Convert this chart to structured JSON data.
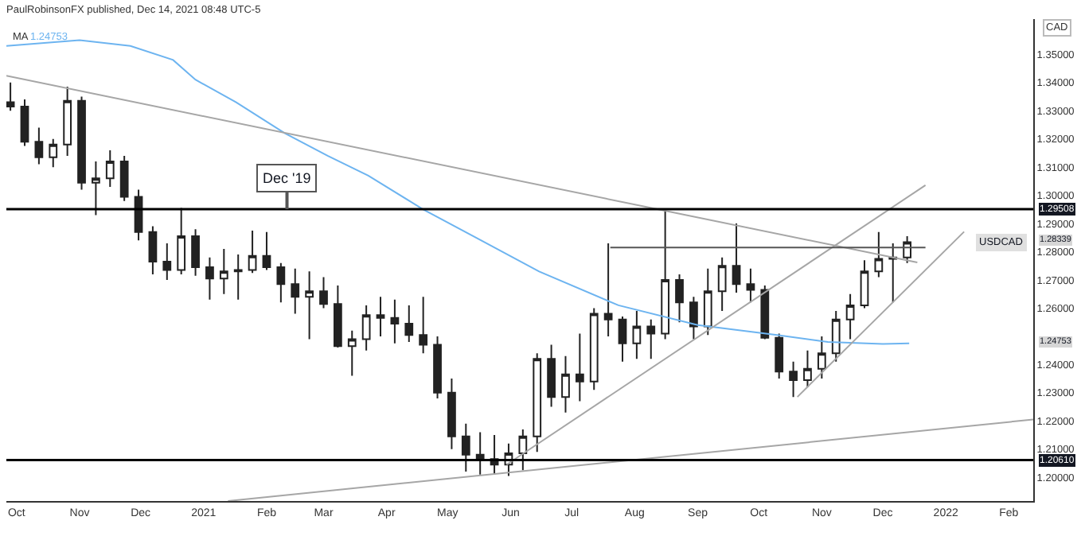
{
  "chart_data": {
    "type": "candlestick",
    "annotations": [
      "PaulRobinsonFX published, Dec 14, 2021 08:48 UTC-5",
      "1.24753",
      "CAD",
      {
        "text": "Dec '19",
        "x": "2021-02-11",
        "y": 1.29508
      },
      {
        "text": "USDCAD",
        "x": "2022-01-28",
        "y": 1.28339
      },
      {
        "text": "1.28339",
        "y": 1.28339
      },
      {
        "text": "1.24753",
        "y": 1.24753
      }
    ],
    "x": [
      "2020-09-28",
      "2020-10-05",
      "2020-10-12",
      "2020-10-19",
      "2020-10-26",
      "2020-11-02",
      "2020-11-09",
      "2020-11-16",
      "2020-11-23",
      "2020-11-30",
      "2020-12-07",
      "2020-12-14",
      "2020-12-21",
      "2020-12-28",
      "2021-01-04",
      "2021-01-11",
      "2021-01-18",
      "2021-01-25",
      "2021-02-01",
      "2021-02-08",
      "2021-02-15",
      "2021-02-22",
      "2021-03-01",
      "2021-03-08",
      "2021-03-15",
      "2021-03-22",
      "2021-03-29",
      "2021-04-05",
      "2021-04-12",
      "2021-04-19",
      "2021-04-26",
      "2021-05-03",
      "2021-05-10",
      "2021-05-17",
      "2021-05-24",
      "2021-05-31",
      "2021-06-07",
      "2021-06-14",
      "2021-06-21",
      "2021-06-28",
      "2021-07-05",
      "2021-07-12",
      "2021-07-19",
      "2021-07-26",
      "2021-08-02",
      "2021-08-09",
      "2021-08-16",
      "2021-08-23",
      "2021-08-30",
      "2021-09-06",
      "2021-09-13",
      "2021-09-20",
      "2021-09-27",
      "2021-10-04",
      "2021-10-11",
      "2021-10-18",
      "2021-10-25",
      "2021-11-01",
      "2021-11-08",
      "2021-11-15",
      "2021-11-22",
      "2021-11-29",
      "2021-12-06",
      "2021-12-13"
    ],
    "ohlc": [
      [
        1.333,
        1.34,
        1.33,
        1.3315
      ],
      [
        1.3315,
        1.334,
        1.3175,
        1.319
      ],
      [
        1.319,
        1.324,
        1.311,
        1.3135
      ],
      [
        1.3135,
        1.32,
        1.31,
        1.318
      ],
      [
        1.318,
        1.3385,
        1.314,
        1.3335
      ],
      [
        1.3335,
        1.335,
        1.302,
        1.3045
      ],
      [
        1.3045,
        1.312,
        1.293,
        1.306
      ],
      [
        1.306,
        1.316,
        1.303,
        1.312
      ],
      [
        1.312,
        1.314,
        1.298,
        1.2995
      ],
      [
        1.2995,
        1.302,
        1.284,
        1.287
      ],
      [
        1.287,
        1.289,
        1.272,
        1.2765
      ],
      [
        1.2765,
        1.283,
        1.27,
        1.2735
      ],
      [
        1.2735,
        1.2955,
        1.272,
        1.2855
      ],
      [
        1.2855,
        1.288,
        1.2715,
        1.2745
      ],
      [
        1.2745,
        1.278,
        1.263,
        1.2705
      ],
      [
        1.2705,
        1.281,
        1.265,
        1.273
      ],
      [
        1.273,
        1.279,
        1.263,
        1.2735
      ],
      [
        1.2735,
        1.2875,
        1.2725,
        1.2785
      ],
      [
        1.2785,
        1.287,
        1.2735,
        1.2745
      ],
      [
        1.2745,
        1.276,
        1.262,
        1.2685
      ],
      [
        1.2685,
        1.274,
        1.258,
        1.264
      ],
      [
        1.264,
        1.273,
        1.249,
        1.266
      ],
      [
        1.266,
        1.271,
        1.26,
        1.2615
      ],
      [
        1.2615,
        1.268,
        1.246,
        1.2465
      ],
      [
        1.2465,
        1.252,
        1.236,
        1.249
      ],
      [
        1.249,
        1.261,
        1.245,
        1.2575
      ],
      [
        1.2575,
        1.264,
        1.25,
        1.2565
      ],
      [
        1.2565,
        1.263,
        1.2475,
        1.2545
      ],
      [
        1.2545,
        1.261,
        1.248,
        1.2505
      ],
      [
        1.2505,
        1.264,
        1.244,
        1.247
      ],
      [
        1.247,
        1.25,
        1.228,
        1.23
      ],
      [
        1.23,
        1.235,
        1.21,
        1.2145
      ],
      [
        1.2145,
        1.219,
        1.202,
        1.208
      ],
      [
        1.208,
        1.216,
        1.201,
        1.2065
      ],
      [
        1.2065,
        1.215,
        1.201,
        1.2045
      ],
      [
        1.2045,
        1.212,
        1.2005,
        1.2085
      ],
      [
        1.2085,
        1.217,
        1.2025,
        1.2145
      ],
      [
        1.2145,
        1.244,
        1.209,
        1.242
      ],
      [
        1.242,
        1.247,
        1.225,
        1.2285
      ],
      [
        1.2285,
        1.243,
        1.223,
        1.2365
      ],
      [
        1.2365,
        1.251,
        1.227,
        1.234
      ],
      [
        1.234,
        1.26,
        1.231,
        1.258
      ],
      [
        1.258,
        1.283,
        1.25,
        1.256
      ],
      [
        1.256,
        1.257,
        1.241,
        1.2475
      ],
      [
        1.2475,
        1.259,
        1.242,
        1.2535
      ],
      [
        1.2535,
        1.256,
        1.242,
        1.251
      ],
      [
        1.251,
        1.295,
        1.249,
        1.27
      ],
      [
        1.27,
        1.272,
        1.255,
        1.262
      ],
      [
        1.262,
        1.264,
        1.249,
        1.2535
      ],
      [
        1.2535,
        1.274,
        1.2505,
        1.266
      ],
      [
        1.266,
        1.278,
        1.259,
        1.275
      ],
      [
        1.275,
        1.29,
        1.2655,
        1.2685
      ],
      [
        1.2685,
        1.274,
        1.262,
        1.2665
      ],
      [
        1.2665,
        1.268,
        1.249,
        1.2495
      ],
      [
        1.2495,
        1.251,
        1.235,
        1.2375
      ],
      [
        1.2375,
        1.241,
        1.2285,
        1.2345
      ],
      [
        1.2345,
        1.245,
        1.232,
        1.2385
      ],
      [
        1.2385,
        1.25,
        1.235,
        1.244
      ],
      [
        1.244,
        1.259,
        1.241,
        1.256
      ],
      [
        1.256,
        1.265,
        1.249,
        1.261
      ],
      [
        1.261,
        1.277,
        1.26,
        1.273
      ],
      [
        1.273,
        1.287,
        1.271,
        1.2775
      ],
      [
        1.2775,
        1.283,
        1.262,
        1.278
      ],
      [
        1.278,
        1.2855,
        1.276,
        1.28339
      ]
    ],
    "series": [
      {
        "name": "MA",
        "type": "line",
        "color": "#6db4f0",
        "x": [
          "2020-09-26",
          "2020-11-01",
          "2020-11-26",
          "2020-12-17",
          "2020-12-28",
          "2021-01-17",
          "2021-02-10",
          "2021-03-03",
          "2021-03-23",
          "2021-04-19",
          "2021-05-15",
          "2021-06-15",
          "2021-07-24",
          "2021-09-01",
          "2021-10-10",
          "2021-11-04",
          "2021-12-01",
          "2021-12-14"
        ],
        "values": [
          1.353,
          1.355,
          1.353,
          1.348,
          1.341,
          1.333,
          1.322,
          1.314,
          1.307,
          1.295,
          1.285,
          1.273,
          1.261,
          1.254,
          1.2505,
          1.248,
          1.2473,
          1.2475
        ]
      },
      {
        "type": "line",
        "color": "#a6a6a6",
        "x": [
          "2020-09-26",
          "2021-12-18"
        ],
        "values": [
          1.3424,
          1.2762
        ]
      },
      {
        "type": "line",
        "color": "#a6a6a6",
        "x": [
          "2021-05-30",
          "2021-12-22"
        ],
        "values": [
          1.2045,
          1.3036
        ]
      },
      {
        "type": "line",
        "color": "#a6a6a6",
        "x": [
          "2021-10-20",
          "2022-01-10"
        ],
        "values": [
          1.2285,
          1.2871
        ]
      },
      {
        "type": "line",
        "color": "#a6a6a6",
        "x": [
          "2021-01-13",
          "2022-02-13"
        ],
        "values": [
          1.1916,
          1.2205
        ]
      },
      {
        "type": "line",
        "color": "#555555",
        "x": [
          "2021-07-20",
          "2021-12-22"
        ],
        "values": [
          1.2815,
          1.2815
        ]
      }
    ],
    "ref_lines": [
      {
        "axis": "y",
        "value": 1.29508,
        "label": "1.29508",
        "color": "#000000"
      },
      {
        "axis": "y",
        "value": 1.2061,
        "label": "1.20610",
        "color": "#000000"
      }
    ],
    "xlim": [
      "2020-09-26",
      "2022-02-13"
    ],
    "xticks": [
      {
        "value": "2020-10-01",
        "label": "Oct"
      },
      {
        "value": "2020-11-01",
        "label": "Nov"
      },
      {
        "value": "2020-12-01",
        "label": "Dec"
      },
      {
        "value": "2021-01-01",
        "label": "2021"
      },
      {
        "value": "2021-02-01",
        "label": "Feb"
      },
      {
        "value": "2021-03-01",
        "label": "Mar"
      },
      {
        "value": "2021-04-01",
        "label": "Apr"
      },
      {
        "value": "2021-05-01",
        "label": "May"
      },
      {
        "value": "2021-06-01",
        "label": "Jun"
      },
      {
        "value": "2021-07-01",
        "label": "Jul"
      },
      {
        "value": "2021-08-01",
        "label": "Aug"
      },
      {
        "value": "2021-09-01",
        "label": "Sep"
      },
      {
        "value": "2021-10-01",
        "label": "Oct"
      },
      {
        "value": "2021-11-01",
        "label": "Nov"
      },
      {
        "value": "2021-12-01",
        "label": "Dec"
      },
      {
        "value": "2022-01-01",
        "label": "2022"
      },
      {
        "value": "2022-02-01",
        "label": "Feb"
      }
    ],
    "ylim": [
      1.1916,
      1.3625
    ],
    "yticks": [
      {
        "value": 1.2,
        "label": "1.20000"
      },
      {
        "value": 1.21,
        "label": "1.21000"
      },
      {
        "value": 1.22,
        "label": "1.22000"
      },
      {
        "value": 1.23,
        "label": "1.23000"
      },
      {
        "value": 1.24,
        "label": "1.24000"
      },
      {
        "value": 1.26,
        "label": "1.26000"
      },
      {
        "value": 1.27,
        "label": "1.27000"
      },
      {
        "value": 1.28,
        "label": "1.28000"
      },
      {
        "value": 1.29,
        "label": "1.29000"
      },
      {
        "value": 1.3,
        "label": "1.30000"
      },
      {
        "value": 1.31,
        "label": "1.31000"
      },
      {
        "value": 1.32,
        "label": "1.32000"
      },
      {
        "value": 1.33,
        "label": "1.33000"
      },
      {
        "value": 1.34,
        "label": "1.34000"
      },
      {
        "value": 1.35,
        "label": "1.35000"
      }
    ],
    "grid": false,
    "legend": false
  }
}
